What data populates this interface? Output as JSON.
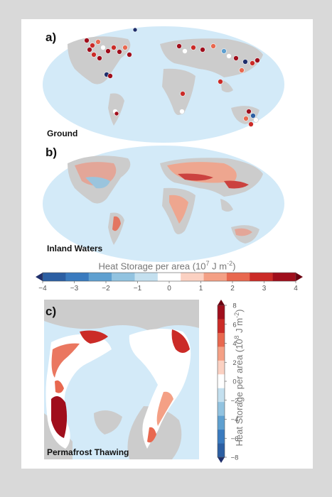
{
  "panels": {
    "a": {
      "label": "a)",
      "caption": "Ground"
    },
    "b": {
      "label": "b)",
      "caption": "Inland Waters"
    },
    "c": {
      "label": "c)",
      "caption": "Permafrost Thawing"
    }
  },
  "horizontal_colorbar": {
    "title": "Heat Storage per area (10",
    "title_exp": "7",
    "title_units": " J m",
    "title_units_exp": "-2",
    "title_close": ")",
    "ticks": [
      "−4",
      "−3",
      "−2",
      "−1",
      "0",
      "1",
      "2",
      "3",
      "4"
    ],
    "range": [
      -4,
      4
    ],
    "colors": [
      "#2c5fa3",
      "#3a7bbf",
      "#5fa0d0",
      "#92c3e0",
      "#c4e0ef",
      "#ffffff",
      "#fbd1c2",
      "#f4a085",
      "#e8684f",
      "#cb2b27",
      "#a00e1c"
    ]
  },
  "vertical_colorbar": {
    "title": "Heat Storage per area (10",
    "title_exp": "8",
    "title_units": " J m",
    "title_units_exp": "-2",
    "title_close": ")",
    "ticks": [
      "8",
      "6",
      "4",
      "2",
      "0",
      "−2",
      "−4",
      "−6",
      "−8"
    ],
    "range": [
      -8,
      8
    ],
    "colors": [
      "#a00e1c",
      "#cb2b27",
      "#e8684f",
      "#f4a085",
      "#fbd1c2",
      "#ffffff",
      "#c4e0ef",
      "#92c3e0",
      "#5fa0d0",
      "#3a7bbf",
      "#2c5fa3"
    ]
  },
  "colors": {
    "ocean": "#d3eaf8",
    "land": "#cccccc",
    "warm": "#c0392b",
    "cold": "#2c5fa3"
  }
}
